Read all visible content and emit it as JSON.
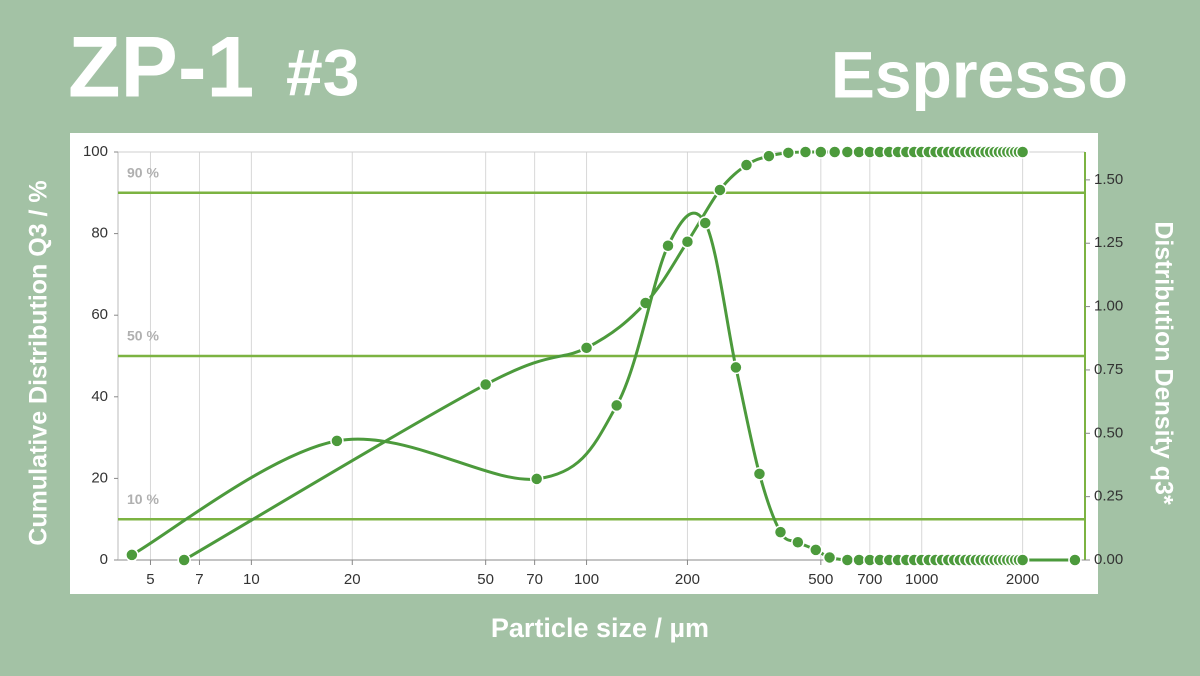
{
  "chart_data": {
    "type": "line",
    "title": "ZP-1",
    "title_number": "#3",
    "subtitle": "Espresso",
    "xlabel": "Particle size / µm",
    "ylabel": "Cumulative Distribution Q3 / %",
    "y2label": "Distribution Density q3*",
    "xscale": "log",
    "xlim": [
      4,
      3070
    ],
    "xticks": [
      5,
      7,
      10,
      20,
      50,
      70,
      100,
      200,
      500,
      700,
      1000,
      2000
    ],
    "ylim": [
      0,
      100
    ],
    "yticks": [
      0,
      20,
      40,
      60,
      80,
      100
    ],
    "y2lim": [
      0,
      1.61
    ],
    "y2ticks": [
      {
        "value": 0,
        "label": "0.00"
      },
      {
        "value": 0.25,
        "label": "0.25"
      },
      {
        "value": 0.5,
        "label": "0.50"
      },
      {
        "value": 0.75,
        "label": "0.75"
      },
      {
        "value": 1,
        "label": "1.00"
      },
      {
        "value": 1.25,
        "label": "1.25"
      },
      {
        "value": 1.5,
        "label": "1.50"
      }
    ],
    "grid": true,
    "reference_lines": [
      {
        "y": 10,
        "label": "10 %"
      },
      {
        "y": 50,
        "label": "50 %"
      },
      {
        "y": 90,
        "label": "90 %"
      }
    ],
    "reference_color": "#7cb342",
    "series": [
      {
        "color": "#4c9a3c",
        "axis": "y",
        "x": [
          6.3,
          50,
          100,
          150,
          200,
          250,
          300,
          350,
          400,
          450,
          500,
          550,
          600,
          650,
          700,
          750,
          800,
          850,
          900,
          950,
          1000,
          1050,
          1100,
          1150,
          1200,
          1250,
          1300,
          1350,
          1400,
          1450,
          1500,
          1550,
          1600,
          1650,
          1700,
          1750,
          1800,
          1850,
          1900,
          1950,
          2000
        ],
        "values": [
          0,
          43,
          52,
          63,
          78,
          90.7,
          96.8,
          99,
          99.8,
          100,
          100,
          100,
          100,
          100,
          100,
          100,
          100,
          100,
          100,
          100,
          100,
          100,
          100,
          100,
          100,
          100,
          100,
          100,
          100,
          100,
          100,
          100,
          100,
          100,
          100,
          100,
          100,
          100,
          100,
          100,
          100
        ]
      },
      {
        "color": "#4c9a3c",
        "axis": "y2",
        "x": [
          4.4,
          18,
          71,
          123,
          175,
          226,
          279,
          328,
          379,
          427,
          483,
          531,
          600,
          650,
          700,
          750,
          800,
          850,
          900,
          950,
          1000,
          1050,
          1100,
          1150,
          1200,
          1250,
          1300,
          1350,
          1400,
          1450,
          1500,
          1550,
          1600,
          1650,
          1700,
          1750,
          1800,
          1850,
          1900,
          1950,
          2000,
          2865
        ],
        "values": [
          0.02,
          0.47,
          0.32,
          0.61,
          1.24,
          1.33,
          0.76,
          0.34,
          0.11,
          0.07,
          0.04,
          0.01,
          0,
          0,
          0,
          0,
          0,
          0,
          0,
          0,
          0,
          0,
          0,
          0,
          0,
          0,
          0,
          0,
          0,
          0,
          0,
          0,
          0,
          0,
          0,
          0,
          0,
          0,
          0,
          0,
          0,
          0
        ]
      }
    ]
  }
}
